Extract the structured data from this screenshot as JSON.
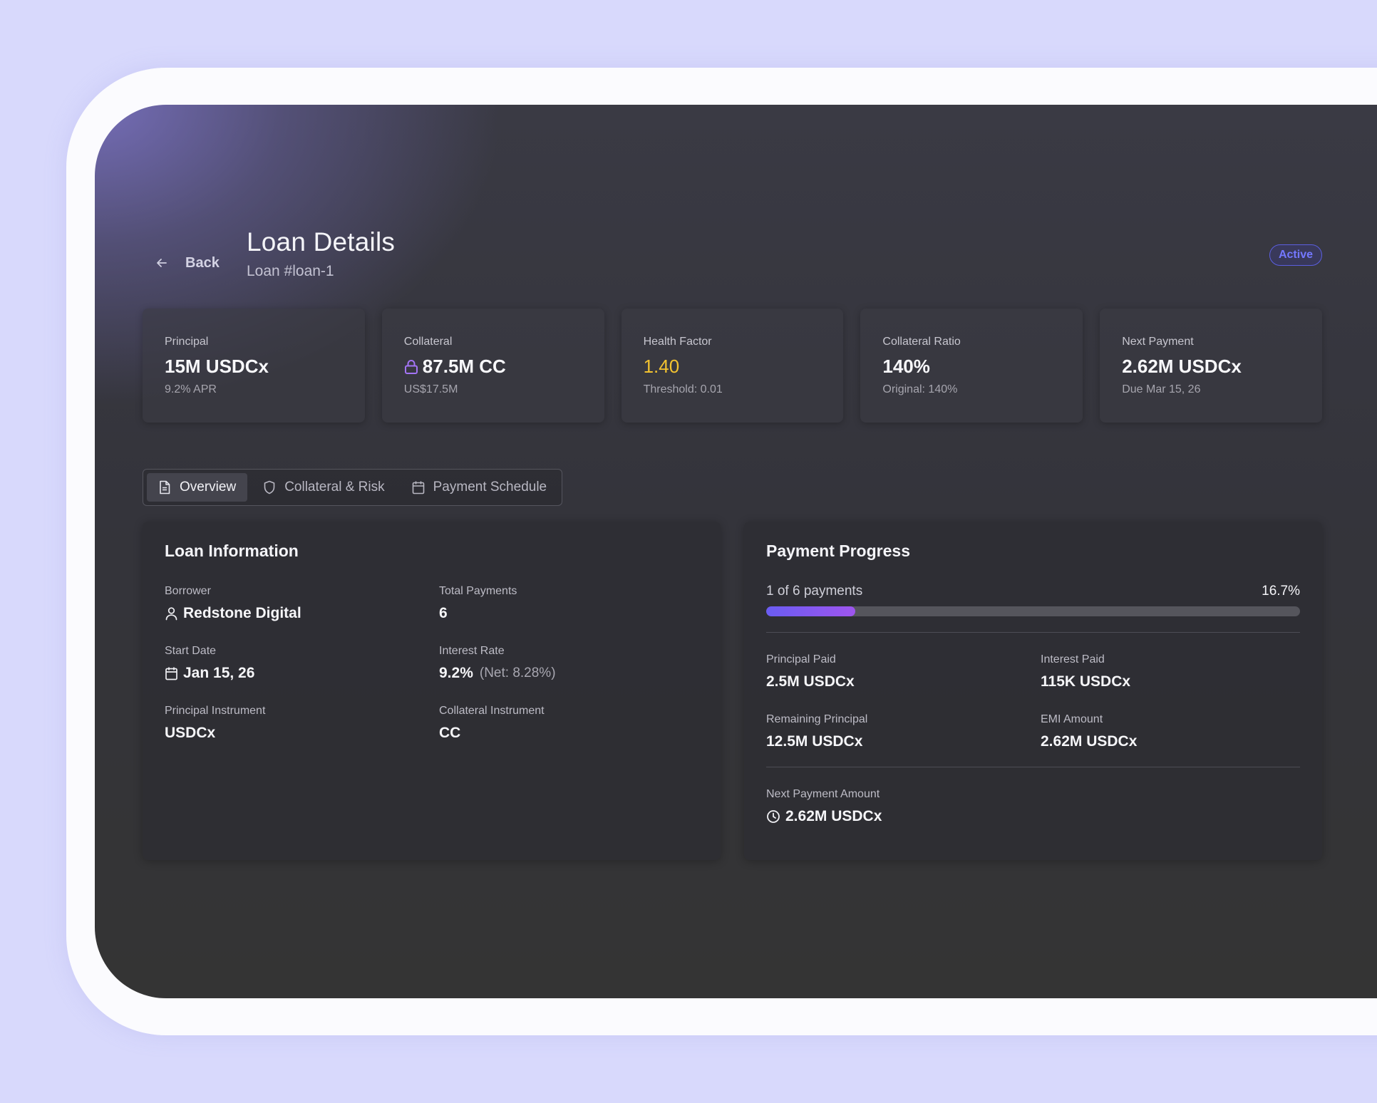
{
  "header": {
    "back_label": "Back",
    "title": "Loan Details",
    "subtitle": "Loan #loan-1",
    "status": "Active"
  },
  "stats": [
    {
      "label": "Principal",
      "value": "15M USDCx",
      "sub": "9.2% APR"
    },
    {
      "label": "Collateral",
      "value": "87.5M CC",
      "sub": "US$17.5M",
      "icon": "lock-icon"
    },
    {
      "label": "Health Factor",
      "value": "1.40",
      "sub": "Threshold: 0.01"
    },
    {
      "label": "Collateral Ratio",
      "value": "140%",
      "sub": "Original: 140%"
    },
    {
      "label": "Next Payment",
      "value": "2.62M USDCx",
      "sub": "Due Mar 15, 26"
    }
  ],
  "tabs": [
    {
      "label": "Overview",
      "icon": "document-icon",
      "active": true
    },
    {
      "label": "Collateral & Risk",
      "icon": "shield-icon",
      "active": false
    },
    {
      "label": "Payment Schedule",
      "icon": "calendar-icon",
      "active": false
    }
  ],
  "loan_info": {
    "title": "Loan Information",
    "borrower_label": "Borrower",
    "borrower": "Redstone Digital",
    "total_payments_label": "Total Payments",
    "total_payments": "6",
    "start_date_label": "Start Date",
    "start_date": "Jan 15, 26",
    "interest_rate_label": "Interest Rate",
    "interest_rate": "9.2%",
    "interest_rate_net": "(Net: 8.28%)",
    "principal_instrument_label": "Principal Instrument",
    "principal_instrument": "USDCx",
    "collateral_instrument_label": "Collateral Instrument",
    "collateral_instrument": "CC"
  },
  "payment_progress": {
    "title": "Payment Progress",
    "progress_text": "1 of 6 payments",
    "percent_text": "16.7%",
    "percent": 16.7,
    "principal_paid_label": "Principal Paid",
    "principal_paid": "2.5M USDCx",
    "interest_paid_label": "Interest Paid",
    "interest_paid": "115K USDCx",
    "remaining_principal_label": "Remaining Principal",
    "remaining_principal": "12.5M USDCx",
    "emi_label": "EMI Amount",
    "emi": "2.62M USDCx",
    "next_payment_label": "Next Payment Amount",
    "next_payment": "2.62M USDCx"
  },
  "colors": {
    "accent": "#5b5fe0",
    "health_factor": "#f2c230",
    "progress_start": "#6a5cf2",
    "progress_end": "#9e55ee",
    "lock_icon": "#a374f5"
  }
}
